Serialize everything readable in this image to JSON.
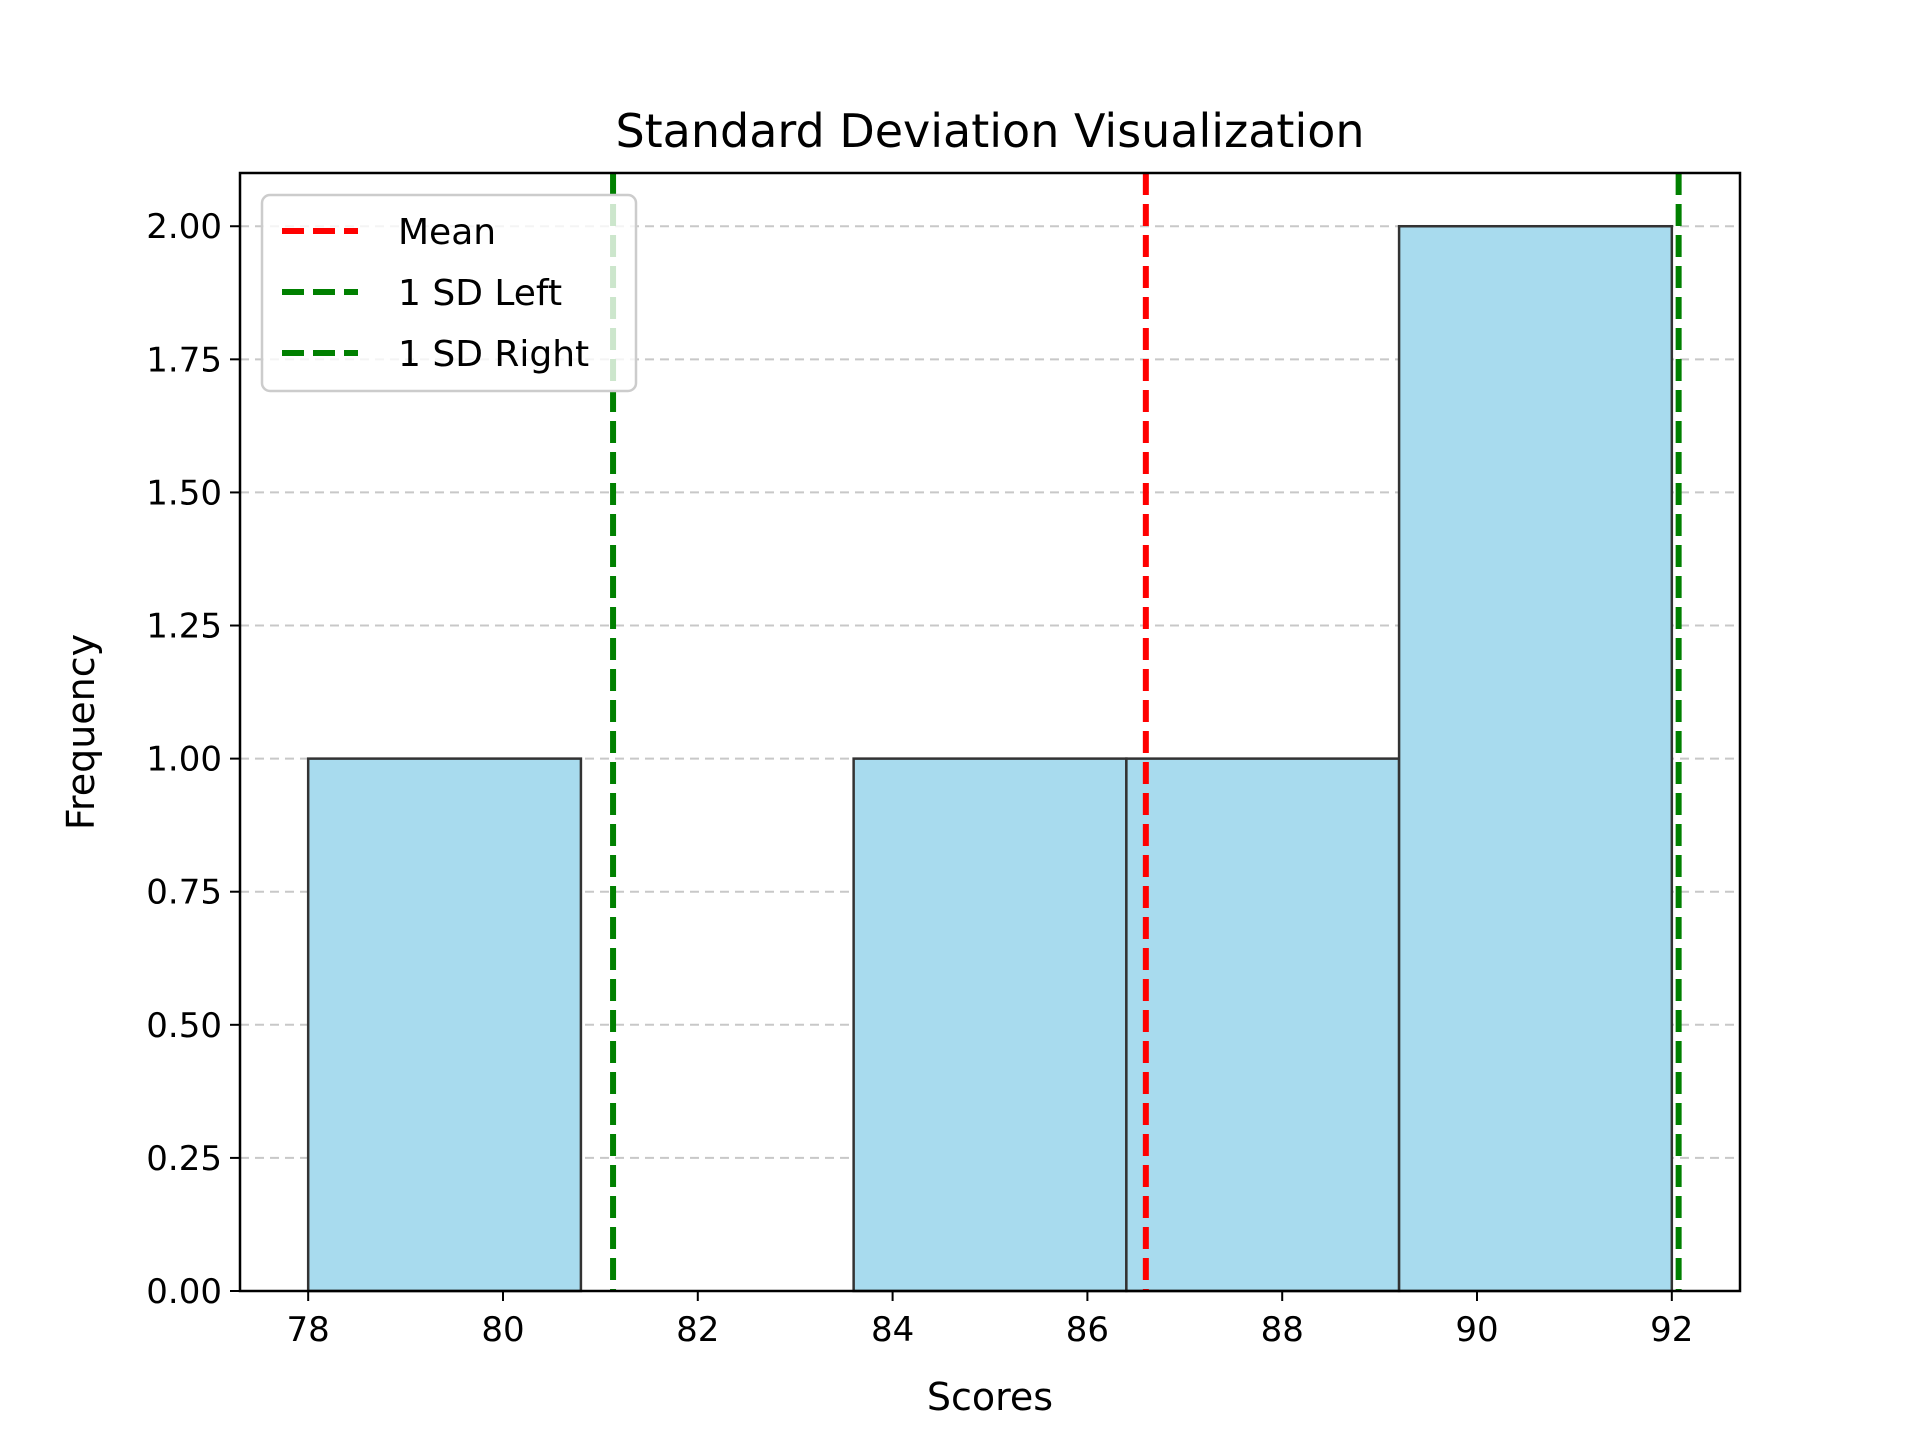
{
  "chart_data": {
    "type": "bar",
    "title": "Standard Deviation Visualization",
    "xlabel": "Scores",
    "ylabel": "Frequency",
    "xlim": [
      77.3,
      92.7
    ],
    "ylim": [
      0,
      2.1
    ],
    "xticks": [
      "78",
      "80",
      "82",
      "84",
      "86",
      "88",
      "90",
      "92"
    ],
    "yticks": [
      "0.00",
      "0.25",
      "0.50",
      "0.75",
      "1.00",
      "1.25",
      "1.50",
      "1.75",
      "2.00"
    ],
    "grid": "y-dashed",
    "bins": [
      {
        "start": 78.0,
        "end": 80.8,
        "count": 1
      },
      {
        "start": 80.8,
        "end": 83.6,
        "count": 0
      },
      {
        "start": 83.6,
        "end": 86.4,
        "count": 1
      },
      {
        "start": 86.4,
        "end": 89.2,
        "count": 1
      },
      {
        "start": 89.2,
        "end": 92.0,
        "count": 2
      }
    ],
    "reference_lines": [
      {
        "name": "Mean",
        "x": 86.6,
        "color": "#ff0000"
      },
      {
        "name": "1 SD Left",
        "x": 81.13,
        "color": "#008000"
      },
      {
        "name": "1 SD Right",
        "x": 92.07,
        "color": "#008000"
      }
    ],
    "bar_color": "#a8dbee",
    "edge_color": "#333333",
    "legend_position": "upper-left"
  }
}
